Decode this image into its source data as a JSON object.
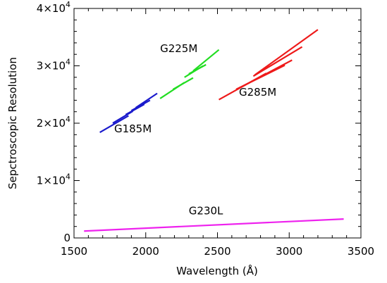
{
  "chart_data": {
    "type": "line",
    "xlabel": "Wavelength (Å)",
    "ylabel": "Sepctroscopic Resolution",
    "xlim": [
      1500,
      3500
    ],
    "ylim": [
      0,
      40000
    ],
    "x_ticks": [
      1500,
      2000,
      2500,
      3000,
      3500
    ],
    "x_tick_labels": [
      "1500",
      "2000",
      "2500",
      "3000",
      "3500"
    ],
    "y_ticks": [
      0,
      10000,
      20000,
      30000,
      40000
    ],
    "y_tick_labels": [
      {
        "base": "0",
        "exp": ""
      },
      {
        "base": "1×10",
        "exp": "4"
      },
      {
        "base": "2×10",
        "exp": "4"
      },
      {
        "base": "3×10",
        "exp": "4"
      },
      {
        "base": "4×10",
        "exp": "4"
      }
    ],
    "grid": false,
    "legend": "none",
    "series": [
      {
        "name": "G185M",
        "color": "#1a1acc",
        "label_at": [
          1780,
          18400
        ],
        "segments": [
          {
            "x": [
              1680,
              1880
            ],
            "y": [
              18400,
              21300
            ]
          },
          {
            "x": [
              1770,
              1910
            ],
            "y": [
              20000,
              22100
            ]
          },
          {
            "x": [
              1860,
              1990
            ],
            "y": [
              21500,
              23300
            ]
          },
          {
            "x": [
              1900,
              2030
            ],
            "y": [
              22200,
              24000
            ]
          },
          {
            "x": [
              1930,
              2080
            ],
            "y": [
              22700,
              25200
            ]
          }
        ]
      },
      {
        "name": "G225M",
        "color": "#22dd22",
        "label_at": [
          2100,
          32400
        ],
        "segments": [
          {
            "x": [
              2100,
              2270
            ],
            "y": [
              24300,
              27100
            ]
          },
          {
            "x": [
              2190,
              2330
            ],
            "y": [
              25900,
              27900
            ]
          },
          {
            "x": [
              2270,
              2400
            ],
            "y": [
              28000,
              30000
            ]
          },
          {
            "x": [
              2300,
              2420
            ],
            "y": [
              28600,
              30200
            ]
          },
          {
            "x": [
              2330,
              2510
            ],
            "y": [
              29100,
              32800
            ]
          }
        ]
      },
      {
        "name": "G285M",
        "color": "#ee1a1a",
        "label_at": [
          2650,
          24800
        ],
        "segments": [
          {
            "x": [
              2510,
              2840
            ],
            "y": [
              24100,
              28700
            ]
          },
          {
            "x": [
              2630,
              2970
            ],
            "y": [
              25900,
              30100
            ]
          },
          {
            "x": [
              2680,
              3020
            ],
            "y": [
              26500,
              31000
            ]
          },
          {
            "x": [
              2750,
              3090
            ],
            "y": [
              28200,
              33300
            ]
          },
          {
            "x": [
              2760,
              3200
            ],
            "y": [
              28400,
              36300
            ]
          }
        ]
      },
      {
        "name": "G230L",
        "color": "#ee22ee",
        "label_at": [
          2300,
          4100
        ],
        "segments": [
          {
            "x": [
              1570,
              3380
            ],
            "y": [
              1200,
              3300
            ]
          }
        ]
      }
    ]
  }
}
